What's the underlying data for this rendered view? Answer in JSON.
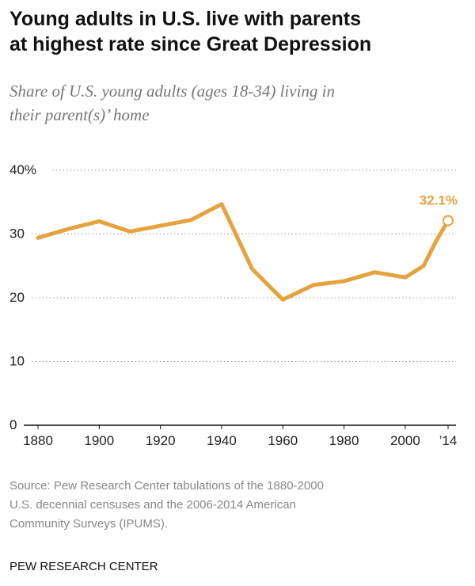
{
  "chart_data": {
    "type": "line",
    "title": [
      "Young adults in U.S. live with parents",
      "at highest rate since Great Depression"
    ],
    "subtitle": [
      "Share of U.S. young adults (ages 18-34) living in",
      "their parent(s)’ home"
    ],
    "x": [
      1880,
      1890,
      1900,
      1910,
      1920,
      1930,
      1940,
      1950,
      1960,
      1970,
      1980,
      1990,
      2000,
      2006,
      2010,
      2014
    ],
    "series": [
      {
        "name": "Share living in parent(s)' home",
        "color": "#e6a23c",
        "values": [
          29.4,
          30.8,
          32.0,
          30.4,
          31.3,
          32.2,
          34.7,
          24.5,
          19.7,
          22.0,
          22.6,
          24.0,
          23.2,
          25.0,
          28.8,
          32.1
        ],
        "value_labels": [
          null,
          null,
          null,
          null,
          null,
          null,
          null,
          null,
          null,
          null,
          null,
          null,
          null,
          null,
          null,
          "32.1%"
        ]
      }
    ],
    "xlim": [
      1880,
      2014
    ],
    "xticks": [
      1880,
      1900,
      1920,
      1940,
      1960,
      1980,
      2000,
      {
        "value": 2014,
        "label": "’14"
      }
    ],
    "ylim": [
      0,
      40
    ],
    "yticks": [
      0,
      10,
      20,
      30,
      {
        "value": 40,
        "label": "40%"
      }
    ],
    "grid": true,
    "source": [
      "Source: Pew Research Center tabulations of the 1880-2000",
      "U.S. decennial censuses and the 2006-2014 American",
      "Community Surveys (IPUMS)."
    ],
    "footer": "PEW RESEARCH CENTER"
  }
}
